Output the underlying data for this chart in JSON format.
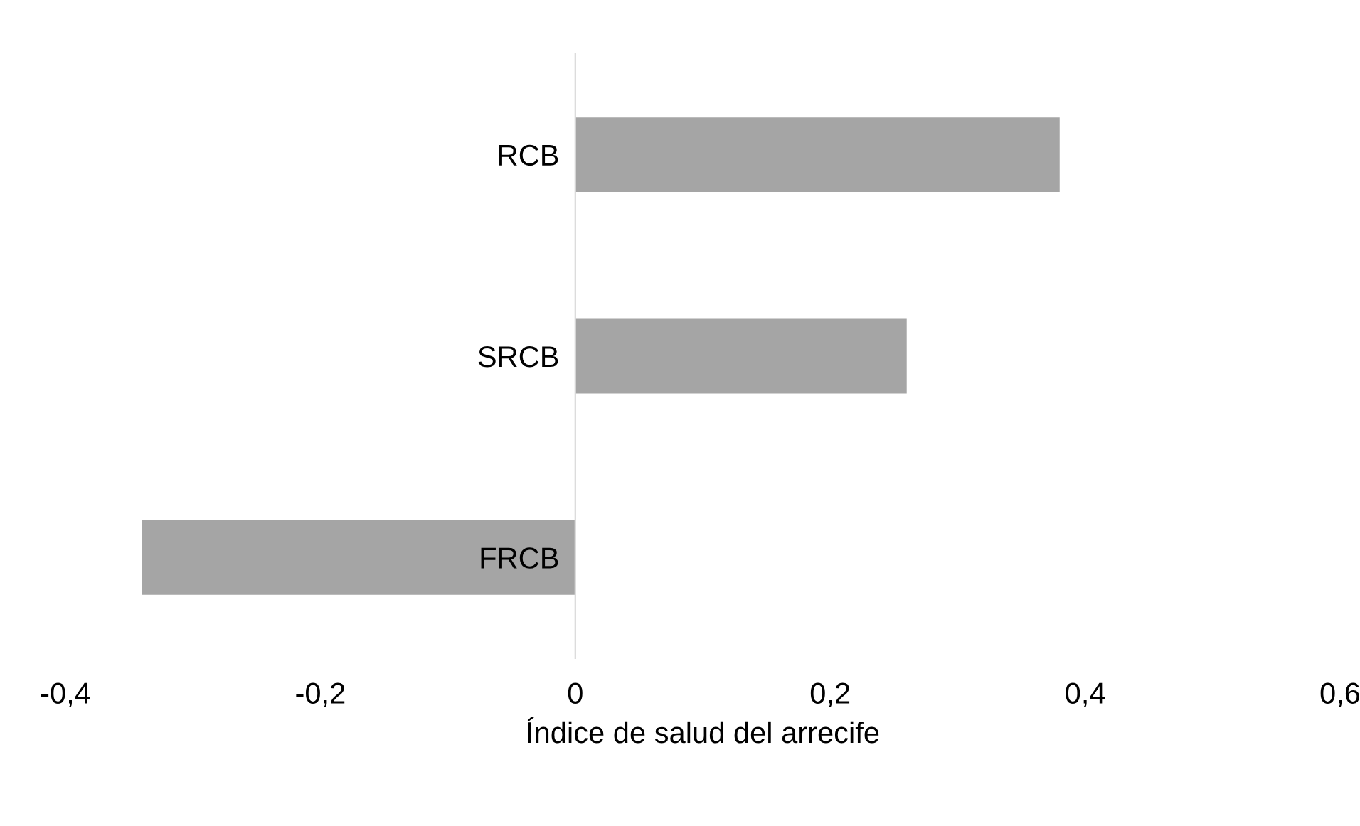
{
  "chart_data": {
    "type": "bar",
    "orientation": "horizontal",
    "xlabel": "Índice de salud del arrecife",
    "categories": [
      "RCB",
      "SRCB",
      "FRCB"
    ],
    "values": [
      0.38,
      0.26,
      -0.34
    ],
    "color": "#a5a5a5",
    "xlim": [
      -0.4,
      0.6
    ],
    "xticks": [
      {
        "value": -0.4,
        "label": "-0,4"
      },
      {
        "value": -0.2,
        "label": "-0,2"
      },
      0,
      {
        "value": 0.2,
        "label": "0,2"
      },
      {
        "value": 0.4,
        "label": "0,4"
      },
      {
        "value": 0.6,
        "label": "0,6"
      }
    ],
    "grid": false,
    "legend": false
  }
}
